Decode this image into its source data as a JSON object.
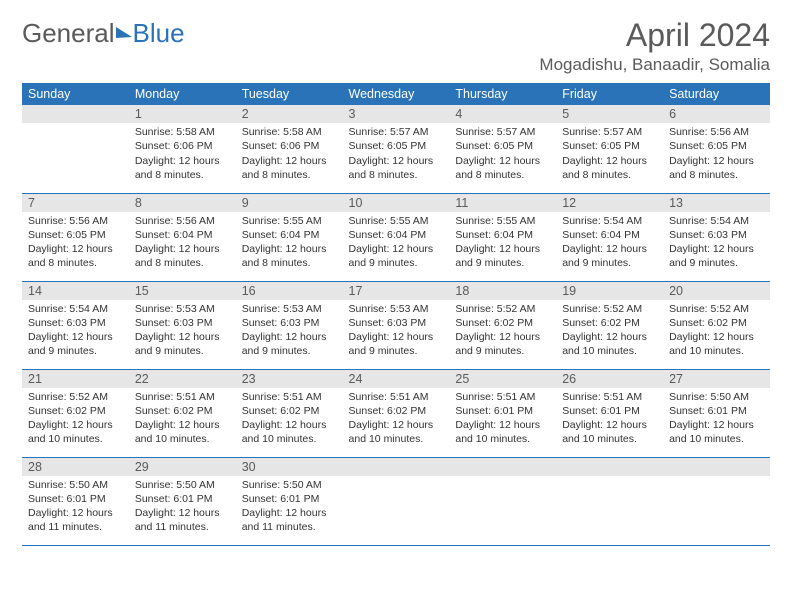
{
  "logo": {
    "part1": "General",
    "part2": "Blue"
  },
  "title": "April 2024",
  "location": "Mogadishu, Banaadir, Somalia",
  "colors": {
    "header_bg": "#2a73b8",
    "header_text": "#ffffff",
    "daynum_bg": "#e6e6e6",
    "text": "#333333",
    "muted": "#5a5a5a",
    "row_border": "#2a73b8"
  },
  "weekdays": [
    "Sunday",
    "Monday",
    "Tuesday",
    "Wednesday",
    "Thursday",
    "Friday",
    "Saturday"
  ],
  "weeks": [
    [
      {
        "n": "",
        "sr": "",
        "ss": "",
        "dl": ""
      },
      {
        "n": "1",
        "sr": "Sunrise: 5:58 AM",
        "ss": "Sunset: 6:06 PM",
        "dl": "Daylight: 12 hours and 8 minutes."
      },
      {
        "n": "2",
        "sr": "Sunrise: 5:58 AM",
        "ss": "Sunset: 6:06 PM",
        "dl": "Daylight: 12 hours and 8 minutes."
      },
      {
        "n": "3",
        "sr": "Sunrise: 5:57 AM",
        "ss": "Sunset: 6:05 PM",
        "dl": "Daylight: 12 hours and 8 minutes."
      },
      {
        "n": "4",
        "sr": "Sunrise: 5:57 AM",
        "ss": "Sunset: 6:05 PM",
        "dl": "Daylight: 12 hours and 8 minutes."
      },
      {
        "n": "5",
        "sr": "Sunrise: 5:57 AM",
        "ss": "Sunset: 6:05 PM",
        "dl": "Daylight: 12 hours and 8 minutes."
      },
      {
        "n": "6",
        "sr": "Sunrise: 5:56 AM",
        "ss": "Sunset: 6:05 PM",
        "dl": "Daylight: 12 hours and 8 minutes."
      }
    ],
    [
      {
        "n": "7",
        "sr": "Sunrise: 5:56 AM",
        "ss": "Sunset: 6:05 PM",
        "dl": "Daylight: 12 hours and 8 minutes."
      },
      {
        "n": "8",
        "sr": "Sunrise: 5:56 AM",
        "ss": "Sunset: 6:04 PM",
        "dl": "Daylight: 12 hours and 8 minutes."
      },
      {
        "n": "9",
        "sr": "Sunrise: 5:55 AM",
        "ss": "Sunset: 6:04 PM",
        "dl": "Daylight: 12 hours and 8 minutes."
      },
      {
        "n": "10",
        "sr": "Sunrise: 5:55 AM",
        "ss": "Sunset: 6:04 PM",
        "dl": "Daylight: 12 hours and 9 minutes."
      },
      {
        "n": "11",
        "sr": "Sunrise: 5:55 AM",
        "ss": "Sunset: 6:04 PM",
        "dl": "Daylight: 12 hours and 9 minutes."
      },
      {
        "n": "12",
        "sr": "Sunrise: 5:54 AM",
        "ss": "Sunset: 6:04 PM",
        "dl": "Daylight: 12 hours and 9 minutes."
      },
      {
        "n": "13",
        "sr": "Sunrise: 5:54 AM",
        "ss": "Sunset: 6:03 PM",
        "dl": "Daylight: 12 hours and 9 minutes."
      }
    ],
    [
      {
        "n": "14",
        "sr": "Sunrise: 5:54 AM",
        "ss": "Sunset: 6:03 PM",
        "dl": "Daylight: 12 hours and 9 minutes."
      },
      {
        "n": "15",
        "sr": "Sunrise: 5:53 AM",
        "ss": "Sunset: 6:03 PM",
        "dl": "Daylight: 12 hours and 9 minutes."
      },
      {
        "n": "16",
        "sr": "Sunrise: 5:53 AM",
        "ss": "Sunset: 6:03 PM",
        "dl": "Daylight: 12 hours and 9 minutes."
      },
      {
        "n": "17",
        "sr": "Sunrise: 5:53 AM",
        "ss": "Sunset: 6:03 PM",
        "dl": "Daylight: 12 hours and 9 minutes."
      },
      {
        "n": "18",
        "sr": "Sunrise: 5:52 AM",
        "ss": "Sunset: 6:02 PM",
        "dl": "Daylight: 12 hours and 9 minutes."
      },
      {
        "n": "19",
        "sr": "Sunrise: 5:52 AM",
        "ss": "Sunset: 6:02 PM",
        "dl": "Daylight: 12 hours and 10 minutes."
      },
      {
        "n": "20",
        "sr": "Sunrise: 5:52 AM",
        "ss": "Sunset: 6:02 PM",
        "dl": "Daylight: 12 hours and 10 minutes."
      }
    ],
    [
      {
        "n": "21",
        "sr": "Sunrise: 5:52 AM",
        "ss": "Sunset: 6:02 PM",
        "dl": "Daylight: 12 hours and 10 minutes."
      },
      {
        "n": "22",
        "sr": "Sunrise: 5:51 AM",
        "ss": "Sunset: 6:02 PM",
        "dl": "Daylight: 12 hours and 10 minutes."
      },
      {
        "n": "23",
        "sr": "Sunrise: 5:51 AM",
        "ss": "Sunset: 6:02 PM",
        "dl": "Daylight: 12 hours and 10 minutes."
      },
      {
        "n": "24",
        "sr": "Sunrise: 5:51 AM",
        "ss": "Sunset: 6:02 PM",
        "dl": "Daylight: 12 hours and 10 minutes."
      },
      {
        "n": "25",
        "sr": "Sunrise: 5:51 AM",
        "ss": "Sunset: 6:01 PM",
        "dl": "Daylight: 12 hours and 10 minutes."
      },
      {
        "n": "26",
        "sr": "Sunrise: 5:51 AM",
        "ss": "Sunset: 6:01 PM",
        "dl": "Daylight: 12 hours and 10 minutes."
      },
      {
        "n": "27",
        "sr": "Sunrise: 5:50 AM",
        "ss": "Sunset: 6:01 PM",
        "dl": "Daylight: 12 hours and 10 minutes."
      }
    ],
    [
      {
        "n": "28",
        "sr": "Sunrise: 5:50 AM",
        "ss": "Sunset: 6:01 PM",
        "dl": "Daylight: 12 hours and 11 minutes."
      },
      {
        "n": "29",
        "sr": "Sunrise: 5:50 AM",
        "ss": "Sunset: 6:01 PM",
        "dl": "Daylight: 12 hours and 11 minutes."
      },
      {
        "n": "30",
        "sr": "Sunrise: 5:50 AM",
        "ss": "Sunset: 6:01 PM",
        "dl": "Daylight: 12 hours and 11 minutes."
      },
      {
        "n": "",
        "sr": "",
        "ss": "",
        "dl": ""
      },
      {
        "n": "",
        "sr": "",
        "ss": "",
        "dl": ""
      },
      {
        "n": "",
        "sr": "",
        "ss": "",
        "dl": ""
      },
      {
        "n": "",
        "sr": "",
        "ss": "",
        "dl": ""
      }
    ]
  ]
}
